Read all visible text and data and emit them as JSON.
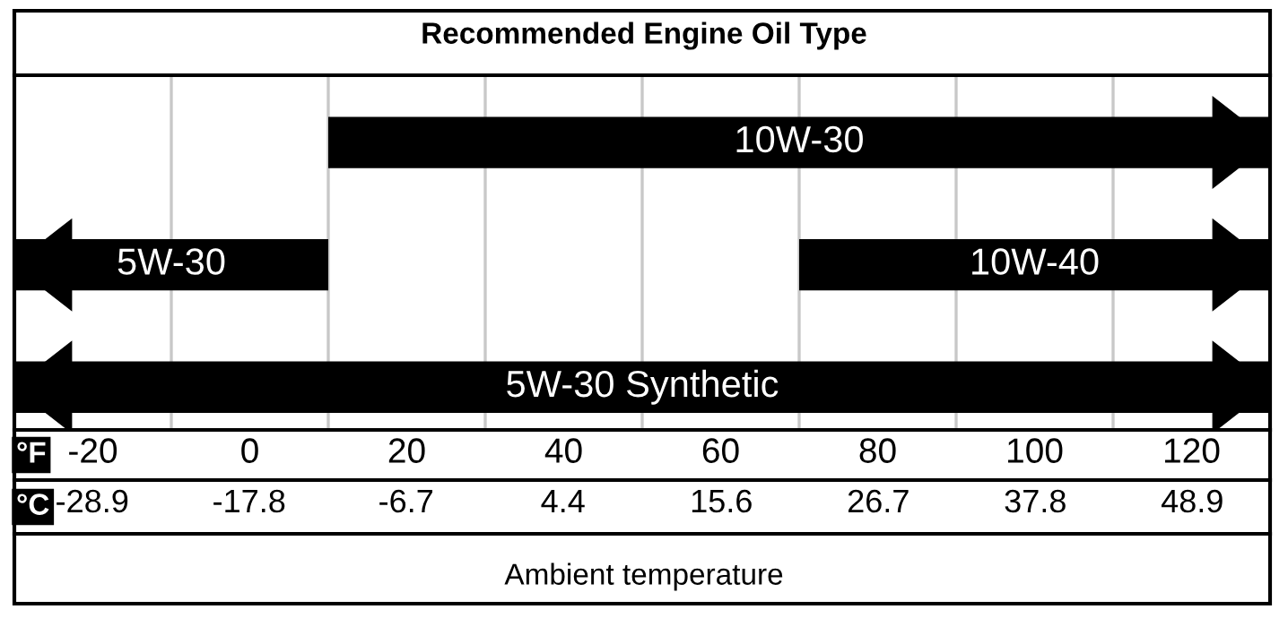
{
  "chart_data": {
    "type": "bar",
    "orientation": "horizontal",
    "title": "Recommended Engine Oil Type",
    "categories": [
      null,
      null,
      null
    ],
    "series": [
      {
        "name": "10W-30",
        "color": "#000000",
        "values": [
          120,
          null,
          null
        ],
        "base": [
          10,
          null,
          null
        ]
      },
      {
        "name": "5W-30",
        "color": "#000000",
        "values": [
          null,
          40,
          null
        ],
        "base": [
          null,
          -30,
          null
        ]
      },
      {
        "name": "10W-40",
        "color": "#000000",
        "values": [
          null,
          60,
          null
        ],
        "base": [
          null,
          70,
          null
        ]
      },
      {
        "name": "5W-30 Synthetic",
        "color": "#000000",
        "values": [
          null,
          null,
          160
        ],
        "base": [
          null,
          null,
          -30
        ]
      }
    ],
    "xlabel": "°F",
    "x2label": "°C",
    "xlim": [
      -30,
      130
    ],
    "xticks": [
      -20,
      0,
      20,
      40,
      60,
      80,
      100,
      120
    ],
    "x2lim": [
      -34.4,
      54.4
    ],
    "x2ticks": [
      -28.9,
      -17.8,
      -6.7,
      4.4,
      15.6,
      26.7,
      37.8,
      48.9
    ],
    "ref_lines": [
      {
        "axis": "x",
        "value": -10,
        "label": null,
        "color": "#c8c8c8"
      },
      {
        "axis": "x",
        "value": 10,
        "label": null,
        "color": "#c8c8c8"
      },
      {
        "axis": "x",
        "value": 30,
        "label": null,
        "color": "#c8c8c8"
      },
      {
        "axis": "x",
        "value": 50,
        "label": null,
        "color": "#c8c8c8"
      },
      {
        "axis": "x",
        "value": 70,
        "label": null,
        "color": "#c8c8c8"
      },
      {
        "axis": "x",
        "value": 90,
        "label": null,
        "color": "#c8c8c8"
      },
      {
        "axis": "x",
        "value": 110,
        "label": null,
        "color": "#c8c8c8"
      }
    ],
    "annotations": [
      "Ambient temperature"
    ],
    "grid": false
  }
}
